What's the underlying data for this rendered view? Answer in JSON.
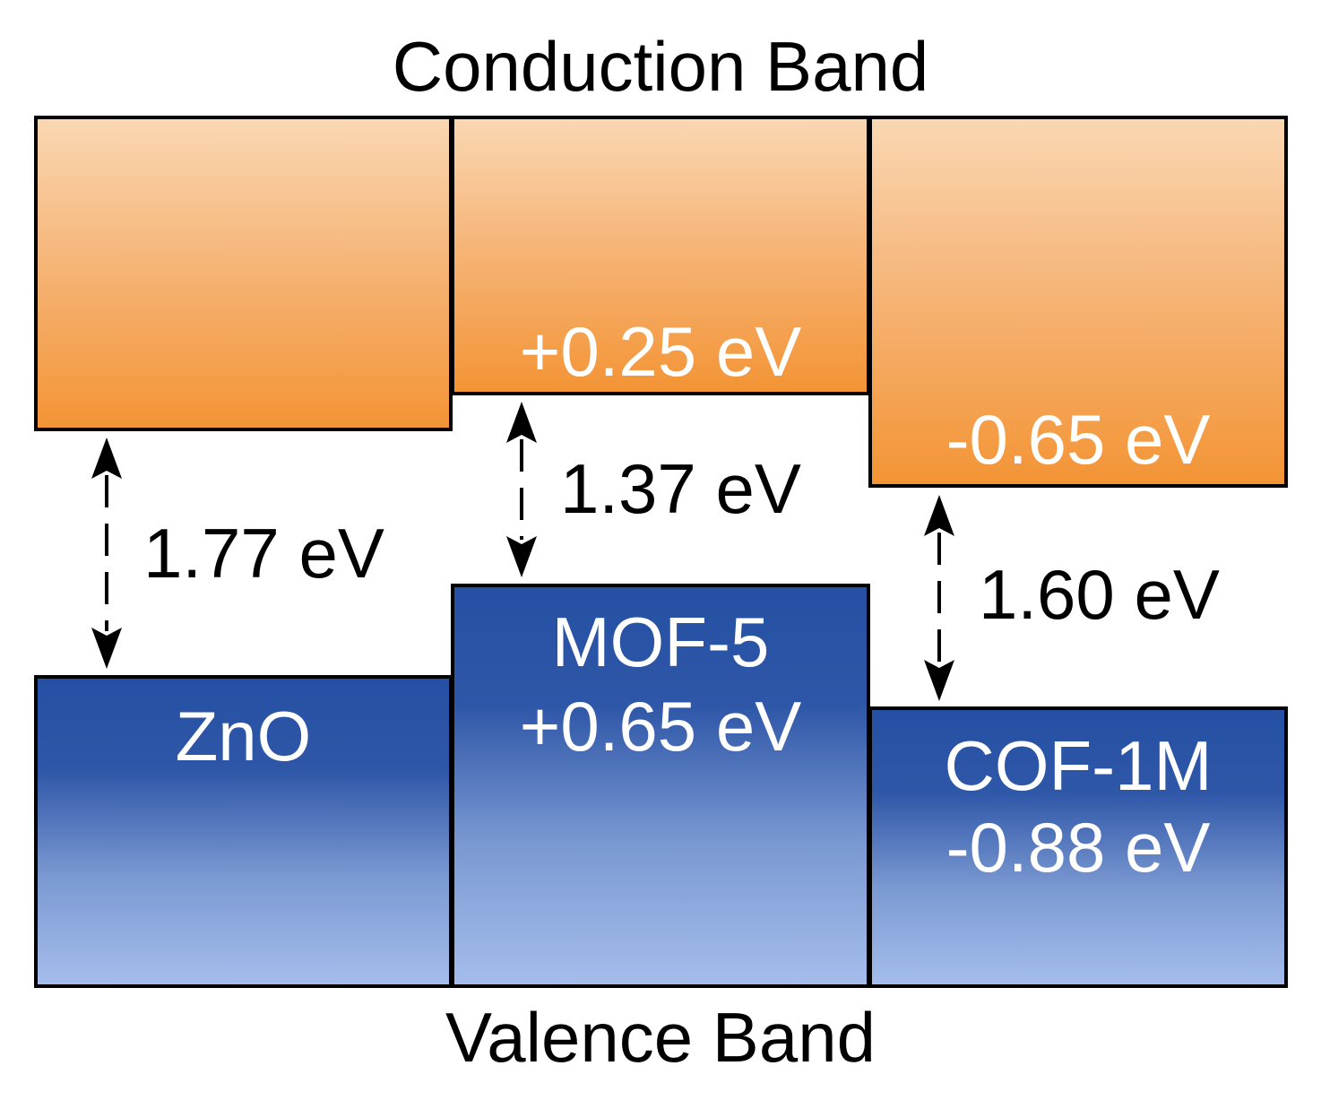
{
  "titles": {
    "conduction": "Conduction Band",
    "valence": "Valence Band"
  },
  "materials": [
    {
      "name": "ZnO",
      "cb_offset": "",
      "vb_offset": "",
      "gap": "1.77 eV"
    },
    {
      "name": "MOF-5",
      "cb_offset": "+0.25 eV",
      "vb_offset": "+0.65 eV",
      "gap": "1.37 eV"
    },
    {
      "name": "COF-1M",
      "cb_offset": "-0.65 eV",
      "vb_offset": "-0.88 eV",
      "gap": "1.60 eV"
    }
  ],
  "colors": {
    "conduction_top": "#fad7b2",
    "conduction_bottom": "#f39435",
    "valence_top": "#2550a3",
    "valence_bottom": "#a4bdeb",
    "outline": "#000000",
    "box_text": "#ffffff"
  }
}
